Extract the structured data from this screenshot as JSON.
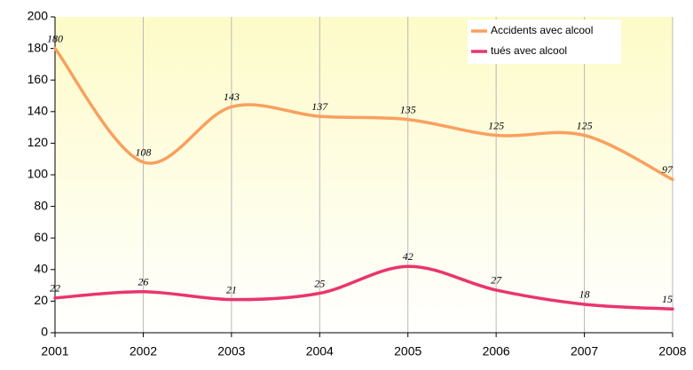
{
  "chart_data": {
    "type": "line",
    "categories": [
      "2001",
      "2002",
      "2003",
      "2004",
      "2005",
      "2006",
      "2007",
      "2008"
    ],
    "series": [
      {
        "name": "Accidents avec alcool",
        "color": "#f9a05f",
        "values": [
          180,
          108,
          143,
          137,
          135,
          125,
          125,
          97
        ]
      },
      {
        "name": "tués avec alcool",
        "color": "#e9356d",
        "values": [
          22,
          26,
          21,
          25,
          42,
          27,
          18,
          15
        ]
      }
    ],
    "ylim": [
      0,
      200
    ],
    "yticks": [
      0,
      20,
      40,
      60,
      80,
      100,
      120,
      140,
      160,
      180,
      200
    ],
    "grid": true,
    "smooth": true,
    "legend": "upper right"
  }
}
